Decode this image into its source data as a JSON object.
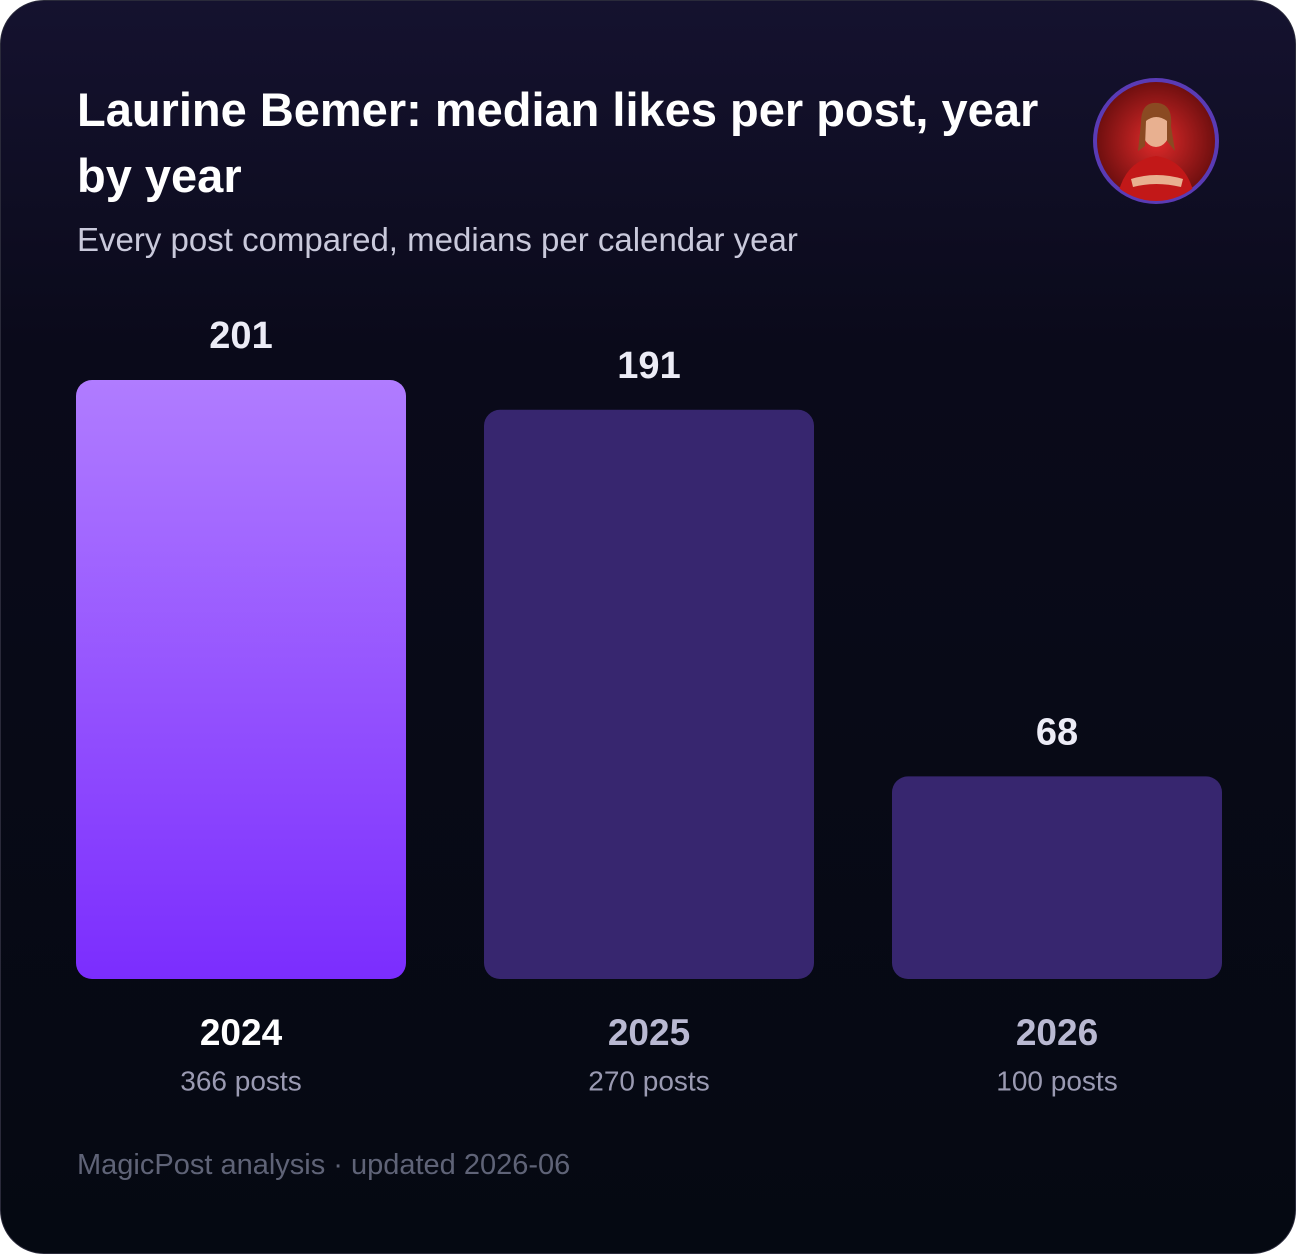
{
  "chart_data": {
    "type": "bar",
    "title": "Laurine Bemer: median likes per post, year by year",
    "subtitle": "Every post compared, medians per calendar year",
    "categories": [
      "2024",
      "2025",
      "2026"
    ],
    "values": [
      201,
      191,
      68
    ],
    "post_counts": [
      "366 posts",
      "270 posts",
      "100 posts"
    ],
    "colors": [
      "#7b2dfe",
      "#37266f",
      "#37266f"
    ],
    "footer": "MagicPost analysis · updated 2026-06"
  }
}
